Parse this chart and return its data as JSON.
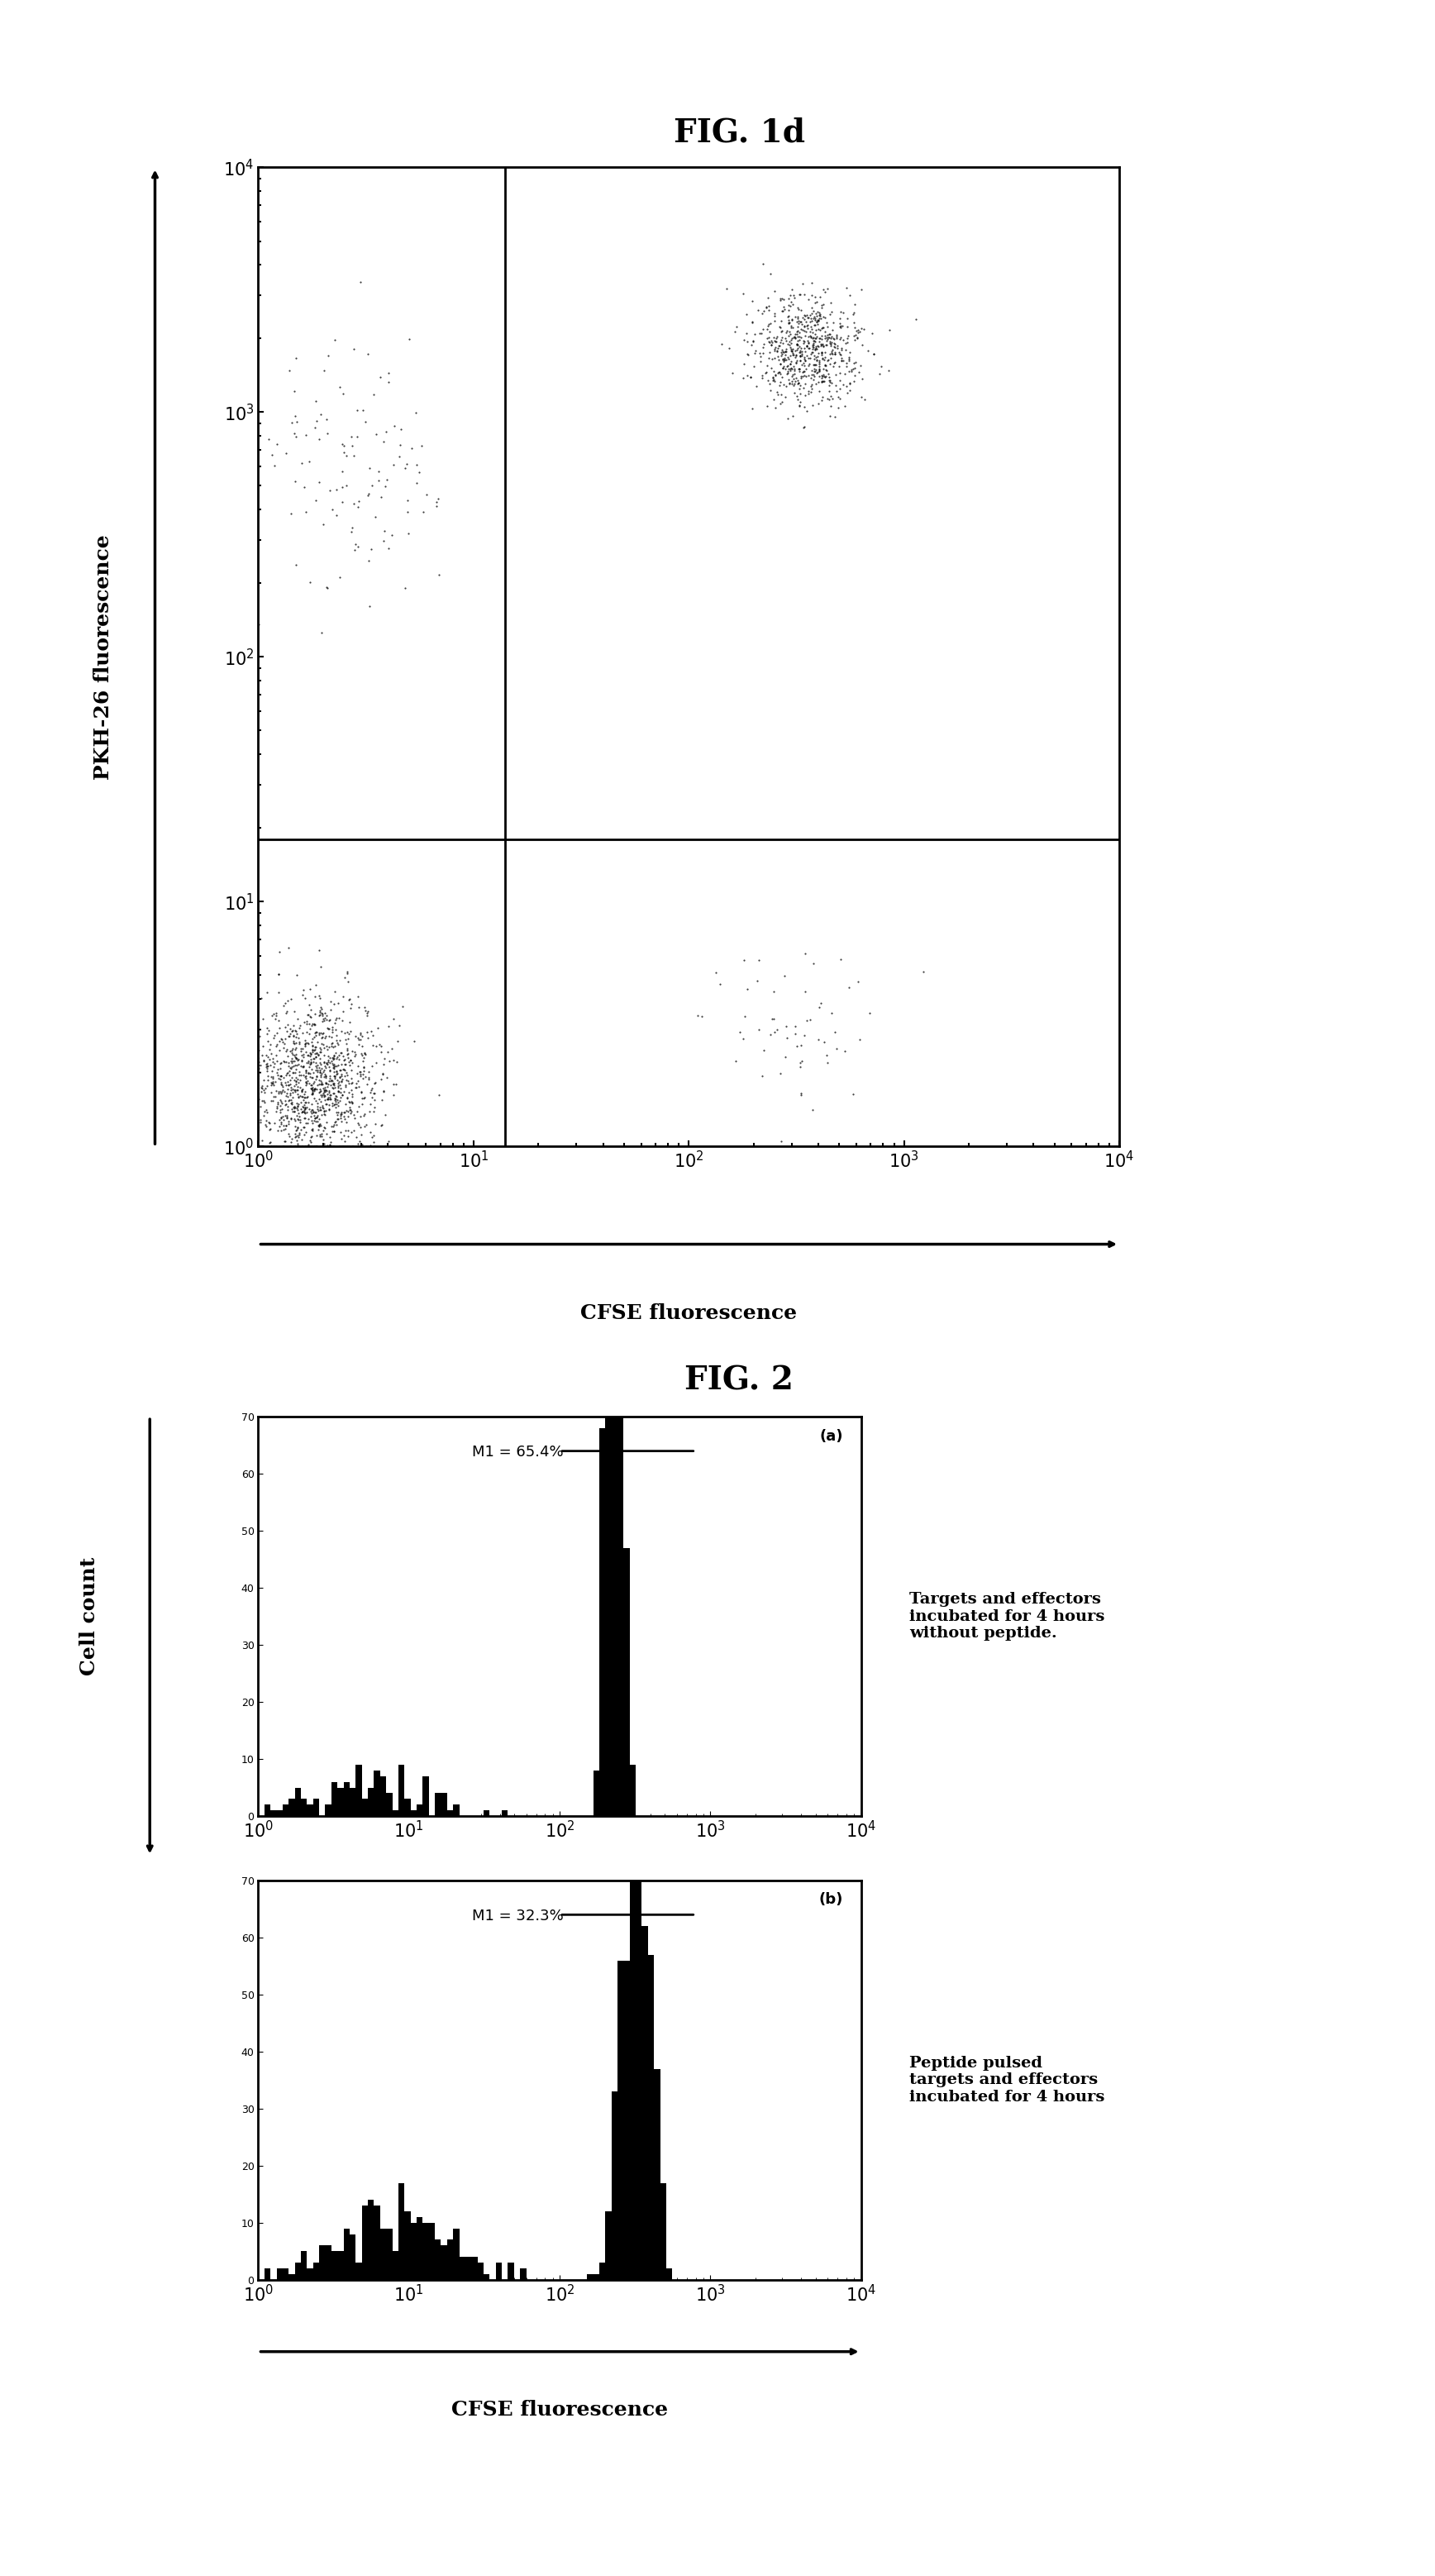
{
  "fig1d_title": "FIG. 1d",
  "fig2_title": "FIG. 2",
  "fig1d_xlabel": "CFSE fluorescence",
  "fig1d_ylabel": "PKH-26 fluorescence",
  "fig2_xlabel": "CFSE fluorescence",
  "fig2_ylabel": "Cell count",
  "panel_a_label": "(a)",
  "panel_b_label": "(b)",
  "panel_a_m1": "M1 = 65.4%",
  "panel_b_m1": "M1 = 32.3%",
  "panel_a_annotation": "Targets and effectors\nincubated for 4 hours\nwithout peptide.",
  "panel_b_annotation": "Peptide pulsed\ntargets and effectors\nincubated for 4 hours",
  "bg_color": "#ffffff",
  "dot_color": "#000000",
  "hist_color": "#000000",
  "title_fontsize": 28,
  "label_fontsize": 18,
  "tick_fontsize": 15
}
